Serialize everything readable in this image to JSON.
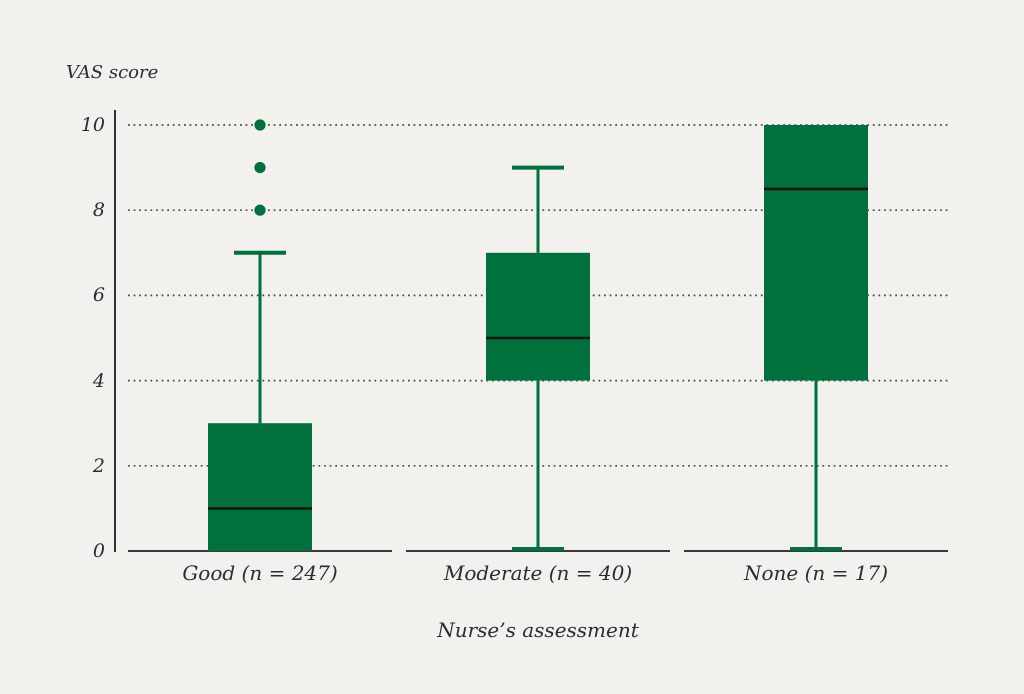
{
  "chart_data": {
    "type": "boxplot",
    "title": "",
    "ylabel": "VAS score",
    "xlabel": "Nurse’s assessment",
    "ylim": [
      0,
      10
    ],
    "yticks": [
      0,
      2,
      4,
      6,
      8,
      10
    ],
    "grid": "horizontal dotted lines at 2, 4, 6, 8, 10",
    "legend": "none",
    "colors": {
      "box_fill": "#00703c",
      "whisker": "#00703c",
      "outlier": "#00703c",
      "median_line": "#141414",
      "axis_line": "#333333",
      "gridline": "#4d4d4d",
      "background": "#f2f1ee",
      "text": "#2d2d2d"
    },
    "categories": [
      {
        "label": "Good (n = 247)",
        "n": 247,
        "whisker_min": 0,
        "q1": 0,
        "median": 1,
        "q3": 3,
        "whisker_max": 7,
        "outliers": [
          8,
          9,
          10
        ]
      },
      {
        "label": "Moderate (n = 40)",
        "n": 40,
        "whisker_min": 0,
        "q1": 4,
        "median": 5,
        "q3": 7,
        "whisker_max": 9,
        "outliers": []
      },
      {
        "label": "None (n = 17)",
        "n": 17,
        "whisker_min": 0,
        "q1": 4,
        "median": 8.5,
        "q3": 10,
        "whisker_max": 10,
        "outliers": []
      }
    ]
  }
}
